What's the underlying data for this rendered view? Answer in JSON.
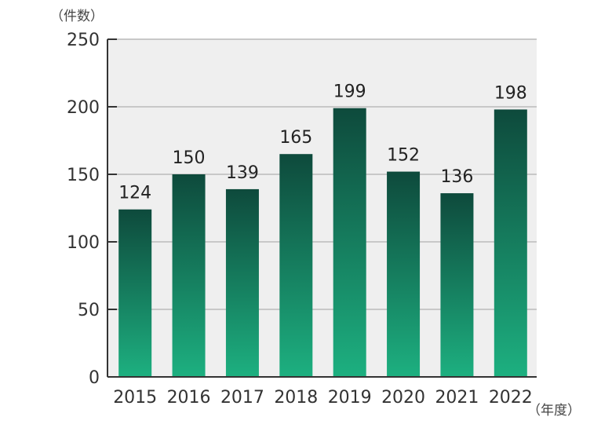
{
  "chart_data": {
    "type": "bar",
    "categories": [
      "2015",
      "2016",
      "2017",
      "2018",
      "2019",
      "2020",
      "2021",
      "2022"
    ],
    "values": [
      124,
      150,
      139,
      165,
      199,
      152,
      136,
      198
    ],
    "ylabel": "（件数）",
    "xlabel": "（年度）",
    "ylim": [
      0,
      250
    ],
    "yticks": [
      0,
      50,
      100,
      150,
      200,
      250
    ],
    "grid": true,
    "data_labels": true,
    "colors": {
      "bar_top": "#0e4a3c",
      "bar_bottom": "#1db080",
      "plot_bg": "#efefef",
      "grid": "#c8c8c8",
      "axis": "#333333"
    }
  }
}
